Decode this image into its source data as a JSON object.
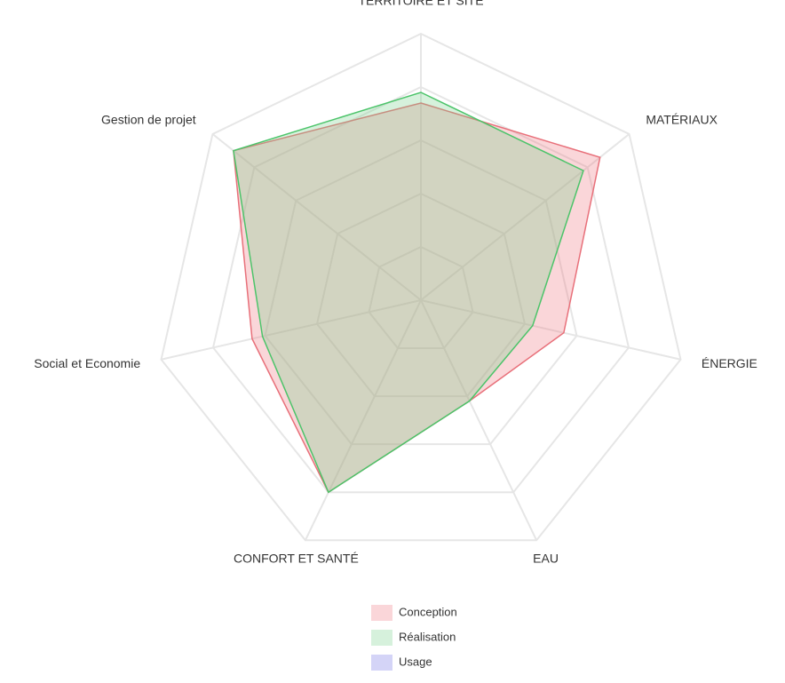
{
  "chart_data": {
    "type": "radar",
    "categories": [
      "TERRITOIRE ET SITE",
      "MATÉRIAUX",
      "ÉNERGIE",
      "EAU",
      "CONFORT ET SANTÉ",
      "Social et Economie",
      "Gestion de projet"
    ],
    "series": [
      {
        "name": "Conception",
        "color": "#e8707a",
        "fill": "rgba(240,120,130,0.3)",
        "values": [
          74,
          86,
          55,
          42,
          80,
          65,
          90
        ]
      },
      {
        "name": "Réalisation",
        "color": "#4cc46a",
        "fill": "rgba(120,210,140,0.3)",
        "values": [
          78,
          78,
          43,
          42,
          80,
          61,
          90
        ]
      },
      {
        "name": "Usage",
        "color": "#9b9be8",
        "fill": "rgba(170,170,240,0.5)",
        "values": [
          null,
          null,
          null,
          null,
          null,
          null,
          null
        ]
      }
    ],
    "rlim": [
      0,
      100
    ],
    "rticks": [
      20,
      40,
      60,
      80,
      100
    ],
    "grid": true
  }
}
